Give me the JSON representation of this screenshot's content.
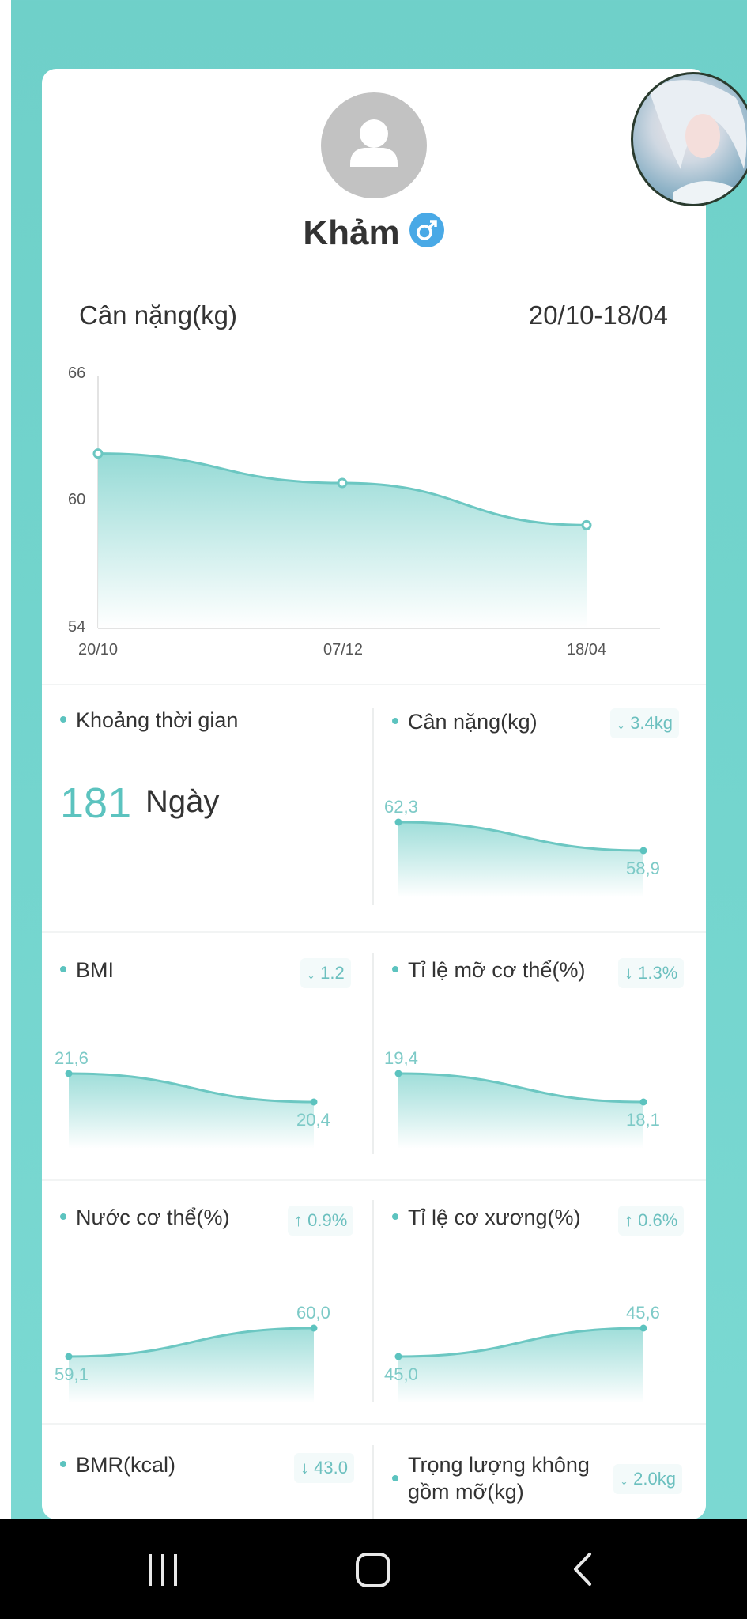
{
  "profile": {
    "name": "Khảm",
    "gender_symbol": "♂"
  },
  "header": {
    "metric_label": "Cân nặng(kg)",
    "date_range": "20/10-18/04"
  },
  "chart_data": {
    "type": "area",
    "title": "Cân nặng(kg)",
    "ylim": [
      54,
      66
    ],
    "y_ticks": [
      "66",
      "60",
      "54"
    ],
    "categories": [
      "20/10",
      "07/12",
      "18/04"
    ],
    "values": [
      62.3,
      60.9,
      58.9
    ],
    "color": "#5cc3bf"
  },
  "stats": {
    "duration": {
      "title": "Khoảng thời gian",
      "value": "181",
      "unit": "Ngày"
    },
    "weight": {
      "title": "Cân nặng(kg)",
      "change": "↓ 3.4kg",
      "start": "62,3",
      "end": "58,9",
      "values": [
        62.3,
        58.9
      ]
    },
    "bmi": {
      "title": "BMI",
      "change": "↓ 1.2",
      "start": "21,6",
      "end": "20,4",
      "values": [
        21.6,
        20.4
      ]
    },
    "body_fat": {
      "title": "Tỉ lệ mỡ cơ thể(%)",
      "change": "↓ 1.3%",
      "start": "19,4",
      "end": "18,1",
      "values": [
        19.4,
        18.1
      ]
    },
    "body_water": {
      "title": "Nước cơ thể(%)",
      "change": "↑ 0.9%",
      "start": "59,1",
      "end": "60,0",
      "values": [
        59.1,
        60.0
      ]
    },
    "muscle": {
      "title": "Tỉ lệ cơ xương(%)",
      "change": "↑ 0.6%",
      "start": "45,0",
      "end": "45,6",
      "values": [
        45.0,
        45.6
      ]
    },
    "bmr": {
      "title": "BMR(kcal)",
      "change": "↓ 43.0"
    },
    "lean_mass": {
      "title_line1": "Trọng lượng không",
      "title_line2": "gồm mỡ(kg)",
      "change": "↓ 2.0kg"
    }
  },
  "navbar": {
    "recent_icon": "recent-apps-icon",
    "home_icon": "home-icon",
    "back_icon": "back-icon"
  }
}
